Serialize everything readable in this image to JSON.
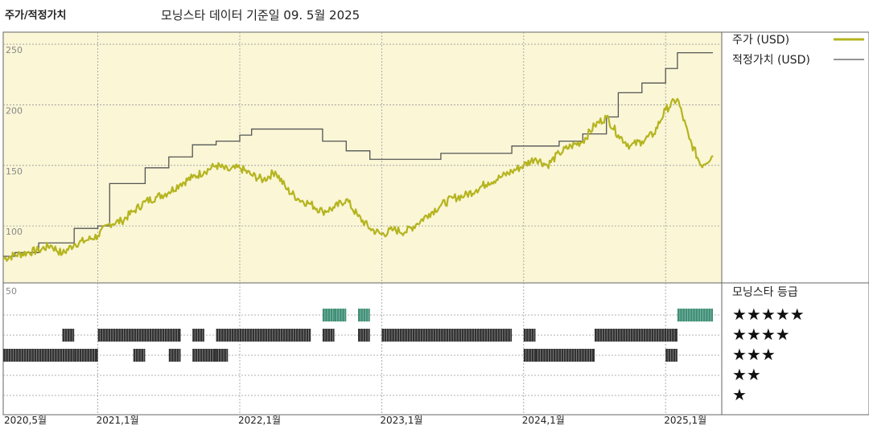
{
  "header": {
    "left_title": "주가/적정가치",
    "subtitle": "모닝스타 데이터 기준일 09. 5월 2025"
  },
  "colors": {
    "price_line": "#b5b41e",
    "fair_value_line": "#555555",
    "upper_bg": "#faf6d6",
    "bar_dark": "#333333",
    "bar_green": "#3f8f76",
    "grid": "#999999"
  },
  "chart_data": [
    {
      "type": "line",
      "yticks": [
        "250",
        "200",
        "150",
        "100"
      ],
      "ylim": [
        53,
        260
      ],
      "xlabels": [
        "2020,5월",
        "2021,1월",
        "2022,1월",
        "2023,1월",
        "2024,1월",
        "2025,1월"
      ],
      "xlim": [
        "2020-05",
        "2025-05"
      ],
      "legend_placement": "right",
      "series": [
        {
          "name": "주가 (USD)",
          "points": [
            [
              "2020-05",
              73
            ],
            [
              "2020-06",
              76
            ],
            [
              "2020-07",
              78
            ],
            [
              "2020-08",
              80
            ],
            [
              "2020-09",
              84
            ],
            [
              "2020-10",
              77
            ],
            [
              "2020-11",
              85
            ],
            [
              "2020-12",
              88
            ],
            [
              "2021-01",
              92
            ],
            [
              "2021-02",
              102
            ],
            [
              "2021-03",
              104
            ],
            [
              "2021-04",
              112
            ],
            [
              "2021-05",
              120
            ],
            [
              "2021-06",
              124
            ],
            [
              "2021-07",
              128
            ],
            [
              "2021-08",
              135
            ],
            [
              "2021-09",
              140
            ],
            [
              "2021-10",
              145
            ],
            [
              "2021-11",
              150
            ],
            [
              "2021-12",
              146
            ],
            [
              "2022-01",
              148
            ],
            [
              "2022-02",
              142
            ],
            [
              "2022-03",
              138
            ],
            [
              "2022-04",
              145
            ],
            [
              "2022-05",
              130
            ],
            [
              "2022-06",
              122
            ],
            [
              "2022-07",
              118
            ],
            [
              "2022-08",
              112
            ],
            [
              "2022-09",
              115
            ],
            [
              "2022-10",
              122
            ],
            [
              "2022-11",
              108
            ],
            [
              "2022-12",
              98
            ],
            [
              "2023-01",
              93
            ],
            [
              "2023-02",
              97
            ],
            [
              "2023-03",
              95
            ],
            [
              "2023-04",
              102
            ],
            [
              "2023-05",
              110
            ],
            [
              "2023-06",
              117
            ],
            [
              "2023-07",
              123
            ],
            [
              "2023-08",
              125
            ],
            [
              "2023-09",
              130
            ],
            [
              "2023-10",
              136
            ],
            [
              "2023-11",
              140
            ],
            [
              "2023-12",
              145
            ],
            [
              "2024-01",
              150
            ],
            [
              "2024-02",
              156
            ],
            [
              "2024-03",
              150
            ],
            [
              "2024-04",
              160
            ],
            [
              "2024-05",
              166
            ],
            [
              "2024-06",
              170
            ],
            [
              "2024-07",
              183
            ],
            [
              "2024-08",
              190
            ],
            [
              "2024-09",
              175
            ],
            [
              "2024-10",
              166
            ],
            [
              "2024-11",
              170
            ],
            [
              "2024-12",
              176
            ],
            [
              "2025-01",
              196
            ],
            [
              "2025-02",
              205
            ],
            [
              "2025-03",
              172
            ],
            [
              "2025-04",
              150
            ],
            [
              "2025-05",
              158
            ]
          ]
        },
        {
          "name": "적정가치 (USD)",
          "points": [
            [
              "2020-05",
              75
            ],
            [
              "2020-06",
              78
            ],
            [
              "2020-08",
              86
            ],
            [
              "2020-11",
              98
            ],
            [
              "2021-01",
              100
            ],
            [
              "2021-02",
              135
            ],
            [
              "2021-05",
              148
            ],
            [
              "2021-07",
              157
            ],
            [
              "2021-09",
              167
            ],
            [
              "2021-11",
              170
            ],
            [
              "2022-01",
              175
            ],
            [
              "2022-02",
              180
            ],
            [
              "2022-08",
              170
            ],
            [
              "2022-10",
              162
            ],
            [
              "2022-12",
              155
            ],
            [
              "2023-06",
              160
            ],
            [
              "2023-12",
              166
            ],
            [
              "2024-04",
              170
            ],
            [
              "2024-06",
              176
            ],
            [
              "2024-08",
              190
            ],
            [
              "2024-09",
              210
            ],
            [
              "2024-11",
              218
            ],
            [
              "2025-01",
              230
            ],
            [
              "2025-02",
              243
            ],
            [
              "2025-05",
              243
            ]
          ]
        }
      ]
    },
    {
      "type": "bar",
      "title": "모닝스타 등급",
      "ytick": "50",
      "rating_levels": [
        "★★★★★",
        "★★★★",
        "★★★",
        "★★",
        "★"
      ],
      "segments": [
        {
          "stars": 5,
          "start": "2022-08",
          "end": "2022-09"
        },
        {
          "stars": 5,
          "start": "2022-09",
          "end": "2022-10"
        },
        {
          "stars": 5,
          "start": "2022-11",
          "end": "2022-12"
        },
        {
          "stars": 5,
          "start": "2025-02",
          "end": "2025-05"
        },
        {
          "stars": 4,
          "start": "2020-10",
          "end": "2020-11"
        },
        {
          "stars": 4,
          "start": "2021-01",
          "end": "2021-08"
        },
        {
          "stars": 4,
          "start": "2021-09",
          "end": "2021-10"
        },
        {
          "stars": 4,
          "start": "2021-11",
          "end": "2022-07"
        },
        {
          "stars": 4,
          "start": "2022-08",
          "end": "2022-09"
        },
        {
          "stars": 4,
          "start": "2022-11",
          "end": "2022-12"
        },
        {
          "stars": 4,
          "start": "2023-01",
          "end": "2023-12"
        },
        {
          "stars": 4,
          "start": "2024-01",
          "end": "2024-02"
        },
        {
          "stars": 4,
          "start": "2024-07",
          "end": "2025-02"
        },
        {
          "stars": 3,
          "start": "2020-05",
          "end": "2020-11"
        },
        {
          "stars": 3,
          "start": "2020-11",
          "end": "2021-01"
        },
        {
          "stars": 3,
          "start": "2021-04",
          "end": "2021-05"
        },
        {
          "stars": 3,
          "start": "2021-07",
          "end": "2021-08"
        },
        {
          "stars": 3,
          "start": "2021-09",
          "end": "2021-11"
        },
        {
          "stars": 3,
          "start": "2021-11",
          "end": "2021-12"
        },
        {
          "stars": 3,
          "start": "2024-01",
          "end": "2024-02"
        },
        {
          "stars": 3,
          "start": "2024-02",
          "end": "2024-07"
        },
        {
          "stars": 3,
          "start": "2025-01",
          "end": "2025-02"
        }
      ]
    }
  ]
}
